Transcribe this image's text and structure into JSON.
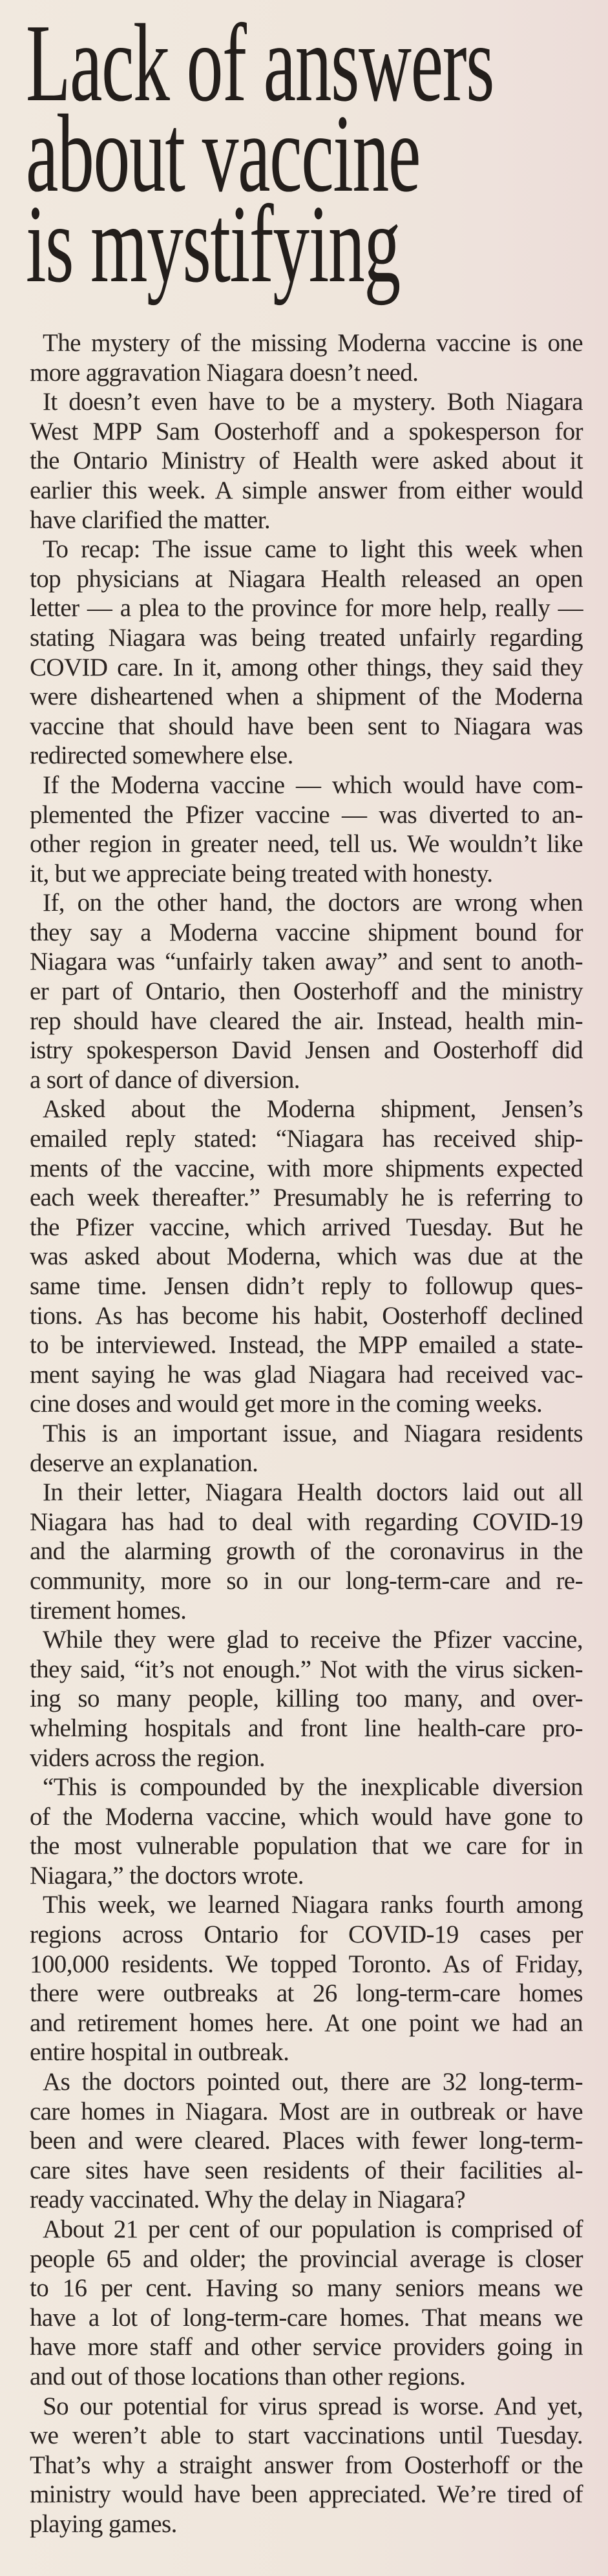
{
  "headline": {
    "lines": [
      "Lack of answers",
      "about vaccine",
      "is mystifying"
    ]
  },
  "article": {
    "paragraphs": [
      [
        "The mystery of the missing Moderna vaccine is one",
        "more aggravation Niagara doesn’t need."
      ],
      [
        "It doesn’t even have to be a mystery. Both Niagara",
        "West MPP Sam Oosterhoff and a spokesperson for",
        "the Ontario Ministry of Health were asked about it",
        "earlier this week. A simple answer from either would",
        "have clarified the matter."
      ],
      [
        "To recap: The issue came to light this week when",
        "top physicians at Niagara Health released an open",
        "letter — a plea to the province for more help, really —",
        "stating Niagara was being treated unfairly regarding",
        "COVID care. In it, among other things, they said they",
        "were disheartened when a shipment of the Moderna",
        "vaccine that should have been sent to Niagara was",
        "redirected somewhere else."
      ],
      [
        "If the Moderna vaccine — which would have com-",
        "plemented the Pfizer vaccine — was diverted to an-",
        "other region in greater need, tell us. We wouldn’t like",
        "it, but we appreciate being treated with honesty."
      ],
      [
        "If, on the other hand, the doctors are wrong when",
        "they say a Moderna vaccine shipment bound for",
        "Niagara was “unfairly taken away” and sent to anoth-",
        "er part of Ontario, then Oosterhoff and the ministry",
        "rep should have cleared the air. Instead, health min-",
        "istry spokesperson David Jensen and Oosterhoff did",
        "a sort of dance of diversion."
      ],
      [
        "Asked about the Moderna shipment, Jensen’s",
        "emailed reply stated: “Niagara has received ship-",
        "ments of the vaccine, with more shipments expected",
        "each week thereafter.” Presumably he is referring to",
        "the Pfizer vaccine, which arrived Tuesday. But he",
        "was asked about Moderna, which was due at the",
        "same time. Jensen didn’t reply to followup ques-",
        "tions. As has become his habit, Oosterhoff declined",
        "to be interviewed. Instead, the MPP emailed a state-",
        "ment saying he was glad Niagara had received vac-",
        "cine doses and would get more in the coming weeks."
      ],
      [
        "This is an important issue, and Niagara residents",
        "deserve an explanation."
      ],
      [
        "In their letter, Niagara Health doctors laid out all",
        "Niagara has had to deal with regarding COVID-19",
        "and the alarming growth of the coronavirus in the",
        "community, more so in our long-term-care and re-",
        "tirement homes."
      ],
      [
        "While they were glad to receive the Pfizer vaccine,",
        "they said, “it’s not enough.” Not with the virus sicken-",
        "ing so many people, killing too many, and over-",
        "whelming hospitals and front line health-care pro-",
        "viders across the region."
      ],
      [
        "“This is compounded by the inexplicable diversion",
        "of the Moderna vaccine, which would have gone to",
        "the most vulnerable population that we care for in",
        "Niagara,” the doctors wrote."
      ],
      [
        "This week, we learned Niagara ranks fourth among",
        "regions across Ontario for COVID-19 cases per",
        "100,000 residents. We topped Toronto. As of Friday,",
        "there were outbreaks at 26 long-term-care homes",
        "and retirement homes here. At one point we had an",
        "entire hospital in outbreak."
      ],
      [
        "As the doctors pointed out, there are 32 long-term-",
        "care homes in Niagara. Most are in outbreak or have",
        "been and were cleared. Places with fewer long-term-",
        "care sites have seen residents of their facilities al-",
        "ready vaccinated. Why the delay in Niagara?"
      ],
      [
        "About 21 per cent of our population is comprised of",
        "people 65 and older; the provincial average is closer",
        "to 16 per cent. Having so many seniors means we",
        "have a lot of long-term-care homes. That means we",
        "have more staff and other service providers going in",
        "and out of those locations than other regions."
      ],
      [
        "So our potential for virus spread is worse. And yet,",
        "we weren’t able to start vaccinations until Tuesday.",
        "That’s why a straight answer from Oosterhoff or the",
        "ministry would have been appreciated. We’re tired of",
        "playing games."
      ]
    ]
  }
}
